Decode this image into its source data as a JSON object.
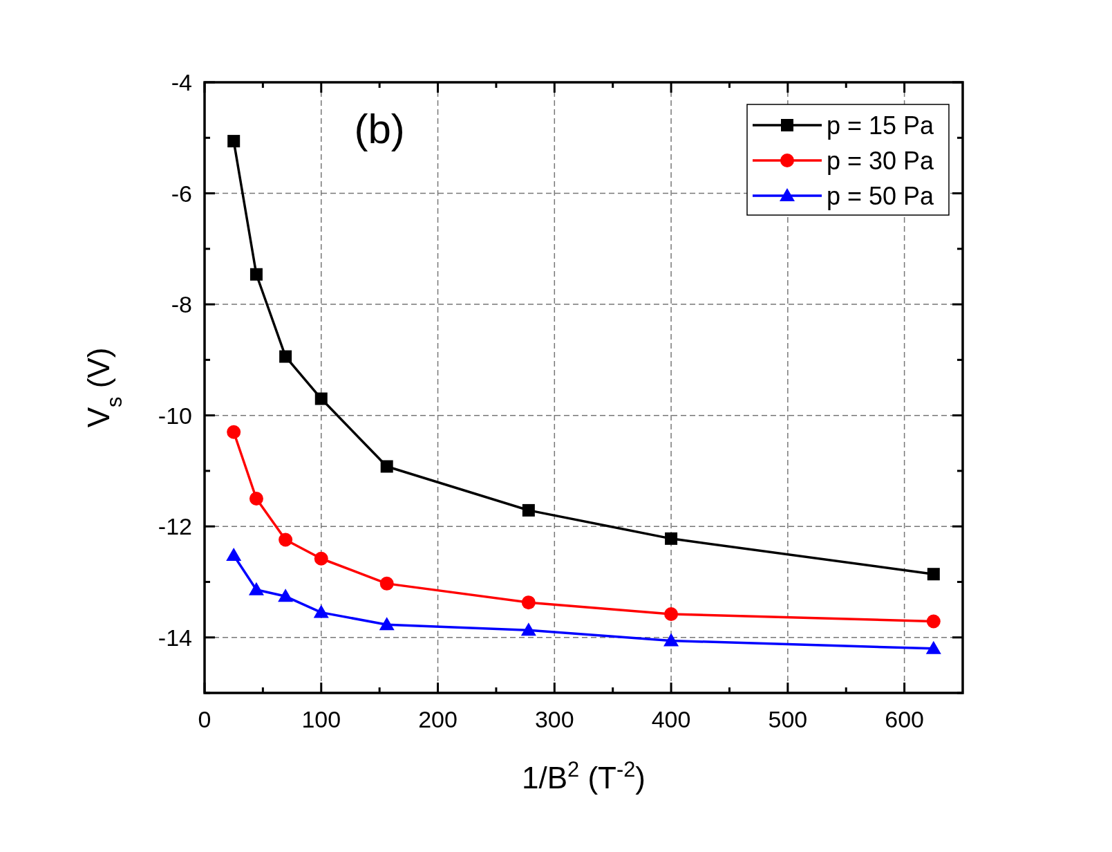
{
  "chart_data": {
    "type": "line",
    "xlabel": "1/B$^{2}$ (T$^{-2}$)",
    "ylabel": "V$_{s}$ (V)",
    "annotations": [
      "(b)"
    ],
    "x": [
      25,
      44.4,
      69.4,
      100,
      156.25,
      277.8,
      400,
      625
    ],
    "xlim": [
      0,
      650
    ],
    "xticks": [
      0,
      {
        "value": 50,
        "label": null
      },
      100,
      {
        "value": 150,
        "label": null
      },
      200,
      {
        "value": 250,
        "label": null
      },
      300,
      {
        "value": 350,
        "label": null
      },
      400,
      {
        "value": 450,
        "label": null
      },
      500,
      {
        "value": 550,
        "label": null
      },
      600
    ],
    "ylim": [
      -15,
      -4
    ],
    "yticks": [
      {
        "value": -15,
        "label": null
      },
      -14,
      {
        "value": -13,
        "label": null
      },
      -12,
      {
        "value": -11,
        "label": null
      },
      -10,
      {
        "value": -9,
        "label": null
      },
      -8,
      {
        "value": -7,
        "label": null
      },
      -6,
      {
        "value": -5,
        "label": null
      },
      -4
    ],
    "grid": true,
    "legend": "top right",
    "line_style": "solid",
    "series": [
      {
        "name": "p = 15 Pa",
        "color": "#000000",
        "marker": "square",
        "values": [
          -5.06,
          -7.46,
          -8.94,
          -9.7,
          -10.92,
          -11.71,
          -12.22,
          -12.86
        ]
      },
      {
        "name": "p = 30 Pa",
        "color": "#ff0000",
        "marker": "circle",
        "values": [
          -10.3,
          -11.5,
          -12.24,
          -12.58,
          -13.03,
          -13.37,
          -13.58,
          -13.71
        ]
      },
      {
        "name": "p = 50 Pa",
        "color": "#0000ff",
        "marker": "triangle",
        "values": [
          -12.52,
          -13.14,
          -13.26,
          -13.55,
          -13.77,
          -13.87,
          -14.06,
          -14.2
        ]
      }
    ]
  }
}
